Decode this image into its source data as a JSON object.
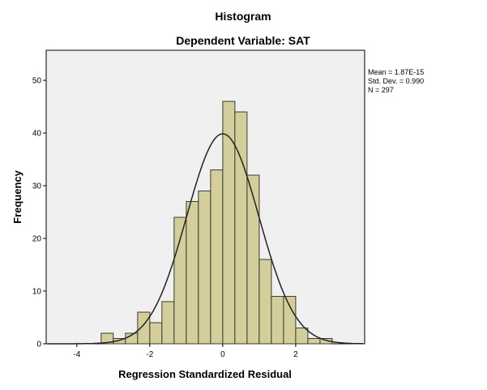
{
  "chart_data": {
    "type": "bar",
    "title": "Histogram",
    "subtitle": "Dependent Variable: SAT",
    "xlabel": "Regression Standardized Residual",
    "ylabel": "Frequency",
    "bin_edges": [
      -3.333,
      -3.0,
      -2.667,
      -2.333,
      -2.0,
      -1.667,
      -1.333,
      -1.0,
      -0.667,
      -0.333,
      0.0,
      0.333,
      0.667,
      1.0,
      1.333,
      1.667,
      2.0,
      2.333,
      2.667,
      3.0
    ],
    "values": [
      2,
      1,
      2,
      6,
      4,
      8,
      24,
      27,
      29,
      33,
      46,
      44,
      32,
      16,
      9,
      9,
      3,
      1,
      1
    ],
    "xlim": [
      -4.84,
      3.89
    ],
    "ylim": [
      0,
      55.7
    ],
    "xticks": [
      -4,
      -2,
      0,
      2
    ],
    "xtick_labels": [
      "-4",
      "-2",
      "0",
      "2"
    ],
    "yticks": [
      0,
      10,
      20,
      30,
      40,
      50
    ],
    "ytick_labels": [
      "0",
      "10",
      "20",
      "30",
      "40",
      "50"
    ],
    "normal_curve": {
      "mean": 0.0,
      "sd": 0.99,
      "n": 297
    },
    "grid": false,
    "legend_stats": [
      "Mean = 1.87E-15",
      "Std. Dev. = 0.990",
      "N = 297"
    ],
    "colors": {
      "bar": "#d4cf9a",
      "bar_edge": "#3a3a30",
      "plot_bg": "#f0f0f0",
      "curve": "#222222"
    }
  }
}
